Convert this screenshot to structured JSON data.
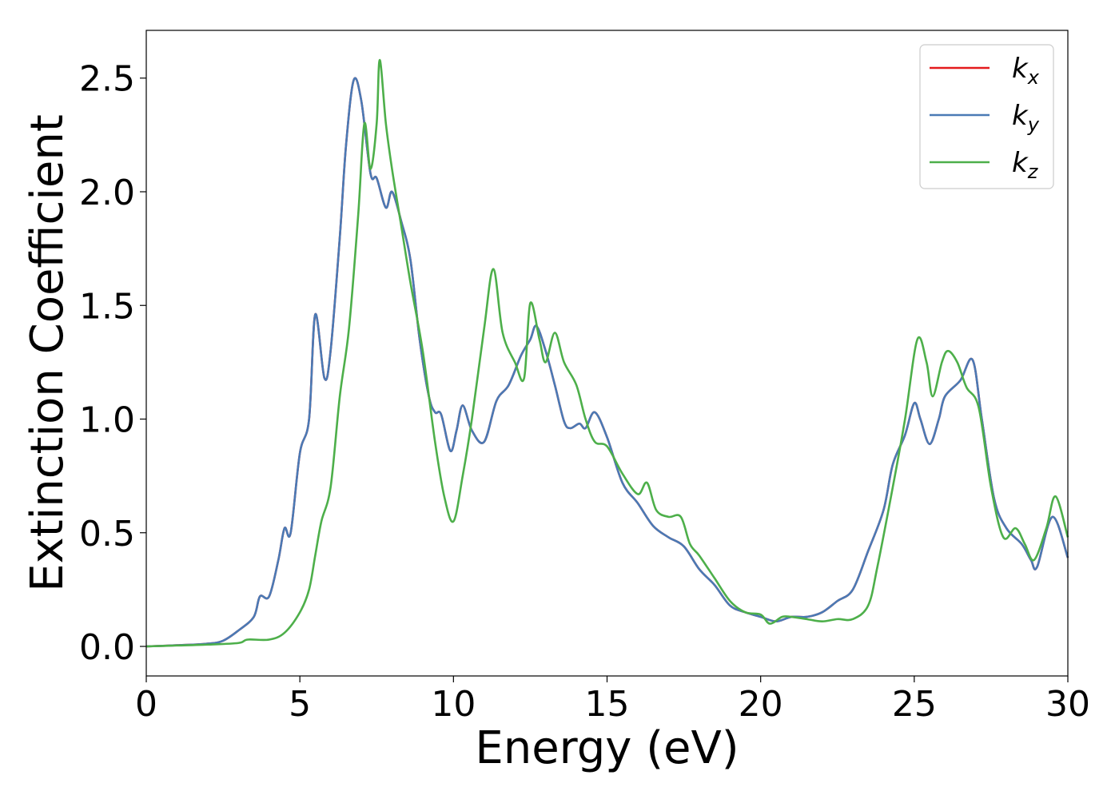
{
  "chart_data": {
    "type": "line",
    "xlabel": "Energy (eV)",
    "ylabel": "Extinction Coefficient",
    "xlim": [
      0,
      30
    ],
    "ylim": [
      -0.13,
      2.71
    ],
    "xticks": [
      "0",
      "5",
      "10",
      "15",
      "20",
      "25",
      "30"
    ],
    "xtick_values": [
      0,
      5,
      10,
      15,
      20,
      25,
      30
    ],
    "yticks": [
      "0.0",
      "0.5",
      "1.0",
      "1.5",
      "2.0",
      "2.5"
    ],
    "ytick_values": [
      0,
      0.5,
      1.0,
      1.5,
      2.0,
      2.5
    ],
    "grid": false,
    "legend_position": "top-right",
    "series": [
      {
        "name": "k_x",
        "legend_base": "k",
        "legend_sub": "x",
        "color": "#e41a1c",
        "points": [
          [
            0,
            0
          ],
          [
            1,
            0.005
          ],
          [
            2,
            0.012
          ],
          [
            2.5,
            0.025
          ],
          [
            3,
            0.07
          ],
          [
            3.5,
            0.13
          ],
          [
            3.7,
            0.22
          ],
          [
            4,
            0.22
          ],
          [
            4.3,
            0.38
          ],
          [
            4.5,
            0.52
          ],
          [
            4.7,
            0.5
          ],
          [
            5,
            0.85
          ],
          [
            5.3,
            1.0
          ],
          [
            5.5,
            1.46
          ],
          [
            5.8,
            1.18
          ],
          [
            6,
            1.3
          ],
          [
            6.3,
            1.8
          ],
          [
            6.5,
            2.2
          ],
          [
            6.75,
            2.49
          ],
          [
            7,
            2.4
          ],
          [
            7.3,
            2.08
          ],
          [
            7.5,
            2.06
          ],
          [
            7.8,
            1.93
          ],
          [
            8,
            2.0
          ],
          [
            8.3,
            1.87
          ],
          [
            8.6,
            1.7
          ],
          [
            8.9,
            1.35
          ],
          [
            9.2,
            1.1
          ],
          [
            9.4,
            1.03
          ],
          [
            9.6,
            1.02
          ],
          [
            9.9,
            0.86
          ],
          [
            10.1,
            0.95
          ],
          [
            10.3,
            1.06
          ],
          [
            10.6,
            0.95
          ],
          [
            11,
            0.9
          ],
          [
            11.4,
            1.08
          ],
          [
            11.8,
            1.15
          ],
          [
            12.2,
            1.28
          ],
          [
            12.5,
            1.35
          ],
          [
            12.7,
            1.41
          ],
          [
            13,
            1.3
          ],
          [
            13.3,
            1.15
          ],
          [
            13.6,
            0.99
          ],
          [
            13.8,
            0.96
          ],
          [
            14.1,
            0.98
          ],
          [
            14.3,
            0.96
          ],
          [
            14.6,
            1.03
          ],
          [
            15,
            0.92
          ],
          [
            15.5,
            0.72
          ],
          [
            16,
            0.63
          ],
          [
            16.5,
            0.53
          ],
          [
            17,
            0.48
          ],
          [
            17.5,
            0.44
          ],
          [
            18,
            0.34
          ],
          [
            18.5,
            0.27
          ],
          [
            19,
            0.18
          ],
          [
            19.5,
            0.15
          ],
          [
            20,
            0.13
          ],
          [
            20.5,
            0.11
          ],
          [
            21,
            0.13
          ],
          [
            21.5,
            0.13
          ],
          [
            22,
            0.15
          ],
          [
            22.5,
            0.2
          ],
          [
            23,
            0.25
          ],
          [
            23.5,
            0.42
          ],
          [
            24,
            0.6
          ],
          [
            24.3,
            0.8
          ],
          [
            24.7,
            0.93
          ],
          [
            25,
            1.07
          ],
          [
            25.2,
            1.0
          ],
          [
            25.5,
            0.89
          ],
          [
            25.8,
            1.0
          ],
          [
            26,
            1.1
          ],
          [
            26.5,
            1.17
          ],
          [
            26.9,
            1.26
          ],
          [
            27.2,
            1.0
          ],
          [
            27.6,
            0.65
          ],
          [
            28,
            0.52
          ],
          [
            28.5,
            0.45
          ],
          [
            28.8,
            0.38
          ],
          [
            29,
            0.35
          ],
          [
            29.5,
            0.57
          ],
          [
            30,
            0.39
          ]
        ]
      },
      {
        "name": "k_y",
        "legend_base": "k",
        "legend_sub": "y",
        "color": "#4a7ab5",
        "points": [
          [
            0,
            0
          ],
          [
            1,
            0.005
          ],
          [
            2,
            0.012
          ],
          [
            2.5,
            0.025
          ],
          [
            3,
            0.07
          ],
          [
            3.5,
            0.13
          ],
          [
            3.7,
            0.22
          ],
          [
            4,
            0.22
          ],
          [
            4.3,
            0.38
          ],
          [
            4.5,
            0.52
          ],
          [
            4.7,
            0.5
          ],
          [
            5,
            0.85
          ],
          [
            5.3,
            1.0
          ],
          [
            5.5,
            1.46
          ],
          [
            5.8,
            1.18
          ],
          [
            6,
            1.3
          ],
          [
            6.3,
            1.8
          ],
          [
            6.5,
            2.2
          ],
          [
            6.75,
            2.49
          ],
          [
            7,
            2.4
          ],
          [
            7.3,
            2.08
          ],
          [
            7.5,
            2.06
          ],
          [
            7.8,
            1.93
          ],
          [
            8,
            2.0
          ],
          [
            8.3,
            1.87
          ],
          [
            8.6,
            1.7
          ],
          [
            8.9,
            1.35
          ],
          [
            9.2,
            1.1
          ],
          [
            9.4,
            1.03
          ],
          [
            9.6,
            1.02
          ],
          [
            9.9,
            0.86
          ],
          [
            10.1,
            0.95
          ],
          [
            10.3,
            1.06
          ],
          [
            10.6,
            0.95
          ],
          [
            11,
            0.9
          ],
          [
            11.4,
            1.08
          ],
          [
            11.8,
            1.15
          ],
          [
            12.2,
            1.28
          ],
          [
            12.5,
            1.35
          ],
          [
            12.7,
            1.41
          ],
          [
            13,
            1.3
          ],
          [
            13.3,
            1.15
          ],
          [
            13.6,
            0.99
          ],
          [
            13.8,
            0.96
          ],
          [
            14.1,
            0.98
          ],
          [
            14.3,
            0.96
          ],
          [
            14.6,
            1.03
          ],
          [
            15,
            0.92
          ],
          [
            15.5,
            0.72
          ],
          [
            16,
            0.63
          ],
          [
            16.5,
            0.53
          ],
          [
            17,
            0.48
          ],
          [
            17.5,
            0.44
          ],
          [
            18,
            0.34
          ],
          [
            18.5,
            0.27
          ],
          [
            19,
            0.18
          ],
          [
            19.5,
            0.15
          ],
          [
            20,
            0.13
          ],
          [
            20.5,
            0.11
          ],
          [
            21,
            0.13
          ],
          [
            21.5,
            0.13
          ],
          [
            22,
            0.15
          ],
          [
            22.5,
            0.2
          ],
          [
            23,
            0.25
          ],
          [
            23.5,
            0.42
          ],
          [
            24,
            0.6
          ],
          [
            24.3,
            0.8
          ],
          [
            24.7,
            0.93
          ],
          [
            25,
            1.07
          ],
          [
            25.2,
            1.0
          ],
          [
            25.5,
            0.89
          ],
          [
            25.8,
            1.0
          ],
          [
            26,
            1.1
          ],
          [
            26.5,
            1.17
          ],
          [
            26.9,
            1.26
          ],
          [
            27.2,
            1.0
          ],
          [
            27.6,
            0.65
          ],
          [
            28,
            0.52
          ],
          [
            28.5,
            0.45
          ],
          [
            28.8,
            0.38
          ],
          [
            29,
            0.35
          ],
          [
            29.5,
            0.57
          ],
          [
            30,
            0.39
          ]
        ]
      },
      {
        "name": "k_z",
        "legend_base": "k",
        "legend_sub": "z",
        "color": "#4daf4a",
        "points": [
          [
            0,
            0
          ],
          [
            1,
            0.004
          ],
          [
            2,
            0.008
          ],
          [
            3,
            0.015
          ],
          [
            3.3,
            0.03
          ],
          [
            4,
            0.03
          ],
          [
            4.5,
            0.06
          ],
          [
            5,
            0.15
          ],
          [
            5.3,
            0.25
          ],
          [
            5.5,
            0.4
          ],
          [
            5.7,
            0.55
          ],
          [
            6,
            0.7
          ],
          [
            6.3,
            1.1
          ],
          [
            6.6,
            1.4
          ],
          [
            6.9,
            1.9
          ],
          [
            7.1,
            2.3
          ],
          [
            7.3,
            2.1
          ],
          [
            7.5,
            2.3
          ],
          [
            7.6,
            2.58
          ],
          [
            7.8,
            2.3
          ],
          [
            8,
            2.1
          ],
          [
            8.3,
            1.85
          ],
          [
            8.6,
            1.6
          ],
          [
            9,
            1.3
          ],
          [
            9.4,
            0.9
          ],
          [
            9.7,
            0.66
          ],
          [
            10,
            0.55
          ],
          [
            10.3,
            0.75
          ],
          [
            10.6,
            1.0
          ],
          [
            11,
            1.4
          ],
          [
            11.3,
            1.66
          ],
          [
            11.6,
            1.38
          ],
          [
            12,
            1.25
          ],
          [
            12.3,
            1.18
          ],
          [
            12.5,
            1.51
          ],
          [
            12.8,
            1.35
          ],
          [
            13,
            1.25
          ],
          [
            13.3,
            1.38
          ],
          [
            13.6,
            1.25
          ],
          [
            14,
            1.15
          ],
          [
            14.3,
            1.0
          ],
          [
            14.6,
            0.9
          ],
          [
            15,
            0.88
          ],
          [
            15.5,
            0.76
          ],
          [
            16,
            0.67
          ],
          [
            16.3,
            0.72
          ],
          [
            16.6,
            0.6
          ],
          [
            17,
            0.57
          ],
          [
            17.4,
            0.57
          ],
          [
            17.7,
            0.45
          ],
          [
            18,
            0.4
          ],
          [
            18.5,
            0.3
          ],
          [
            19,
            0.2
          ],
          [
            19.5,
            0.15
          ],
          [
            20,
            0.14
          ],
          [
            20.3,
            0.1
          ],
          [
            20.7,
            0.13
          ],
          [
            21,
            0.13
          ],
          [
            21.5,
            0.12
          ],
          [
            22,
            0.11
          ],
          [
            22.5,
            0.12
          ],
          [
            23,
            0.12
          ],
          [
            23.5,
            0.18
          ],
          [
            23.8,
            0.35
          ],
          [
            24.3,
            0.7
          ],
          [
            24.7,
            1.0
          ],
          [
            25.1,
            1.35
          ],
          [
            25.4,
            1.25
          ],
          [
            25.6,
            1.1
          ],
          [
            25.9,
            1.25
          ],
          [
            26.1,
            1.3
          ],
          [
            26.4,
            1.25
          ],
          [
            26.7,
            1.14
          ],
          [
            27.1,
            1.05
          ],
          [
            27.5,
            0.7
          ],
          [
            27.9,
            0.48
          ],
          [
            28.3,
            0.52
          ],
          [
            28.6,
            0.45
          ],
          [
            28.9,
            0.38
          ],
          [
            29.3,
            0.52
          ],
          [
            29.6,
            0.66
          ],
          [
            30,
            0.48
          ]
        ]
      }
    ]
  }
}
